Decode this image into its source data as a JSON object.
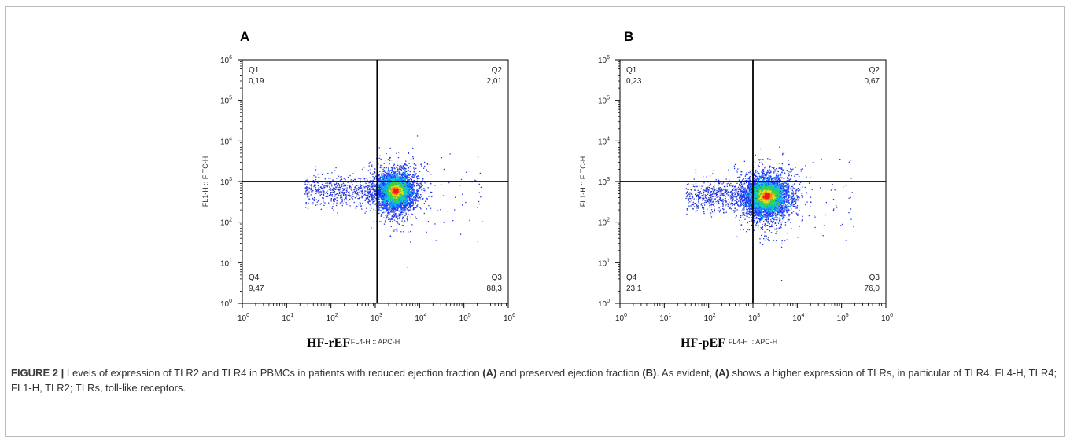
{
  "figure": {
    "caption": {
      "label": "FIGURE 2 |",
      "part1": " Levels of expression of TLR2 and TLR4 in PBMCs in patients with reduced ejection fraction ",
      "ref1": "(A)",
      "part2": " and preserved ejection fraction ",
      "ref2": "(B)",
      "part3": ". As evident, ",
      "ref3": "(A)",
      "part4": " shows a higher expression of TLRs, in particular of TLR4. FL4-H, TLR4; FL1-H, TLR2; TLRs, toll-like receptors."
    }
  },
  "chart_data": [
    {
      "type": "scatter",
      "panel": "A",
      "group_label": "HF-rEF",
      "xlabel": "FL4-H :: APC-H",
      "ylabel": "FL1-H :: FITC-H",
      "xscale": "log",
      "yscale": "log",
      "xlim": [
        1,
        1000000
      ],
      "ylim": [
        1,
        1000000
      ],
      "x_ticks": [
        "10^0",
        "10^1",
        "10^2",
        "10^3",
        "10^4",
        "10^5",
        "10^6"
      ],
      "y_ticks": [
        "10^0",
        "10^1",
        "10^2",
        "10^3",
        "10^4",
        "10^5",
        "10^6"
      ],
      "gate": {
        "x": 1100,
        "y": 1000
      },
      "quadrants": [
        {
          "name": "Q1",
          "value": "0,19",
          "position": "top-left"
        },
        {
          "name": "Q2",
          "value": "2,01",
          "position": "top-right"
        },
        {
          "name": "Q3",
          "value": "88,3",
          "position": "bottom-right"
        },
        {
          "name": "Q4",
          "value": "9,47",
          "position": "bottom-left"
        }
      ],
      "population": {
        "center_x": 2800,
        "center_y": 600,
        "spread_x_log": 0.18,
        "spread_y_log": 0.2,
        "tail_left_to_x": 25
      },
      "style": "pseudocolor density"
    },
    {
      "type": "scatter",
      "panel": "B",
      "group_label": "HF-pEF",
      "xlabel": "FL4-H :: APC-H",
      "ylabel": "FL1-H :: FITC-H",
      "xscale": "log",
      "yscale": "log",
      "xlim": [
        1,
        1000000
      ],
      "ylim": [
        1,
        1000000
      ],
      "x_ticks": [
        "10^0",
        "10^1",
        "10^2",
        "10^3",
        "10^4",
        "10^5",
        "10^6"
      ],
      "y_ticks": [
        "10^0",
        "10^1",
        "10^2",
        "10^3",
        "10^4",
        "10^5",
        "10^6"
      ],
      "gate": {
        "x": 1000,
        "y": 1000
      },
      "quadrants": [
        {
          "name": "Q1",
          "value": "0,23",
          "position": "top-left"
        },
        {
          "name": "Q2",
          "value": "0,67",
          "position": "top-right"
        },
        {
          "name": "Q3",
          "value": "76,0",
          "position": "bottom-right"
        },
        {
          "name": "Q4",
          "value": "23,1",
          "position": "bottom-left"
        }
      ],
      "population": {
        "center_x": 2000,
        "center_y": 450,
        "spread_x_log": 0.22,
        "spread_y_log": 0.22,
        "tail_left_to_x": 30
      },
      "style": "pseudocolor density"
    }
  ]
}
